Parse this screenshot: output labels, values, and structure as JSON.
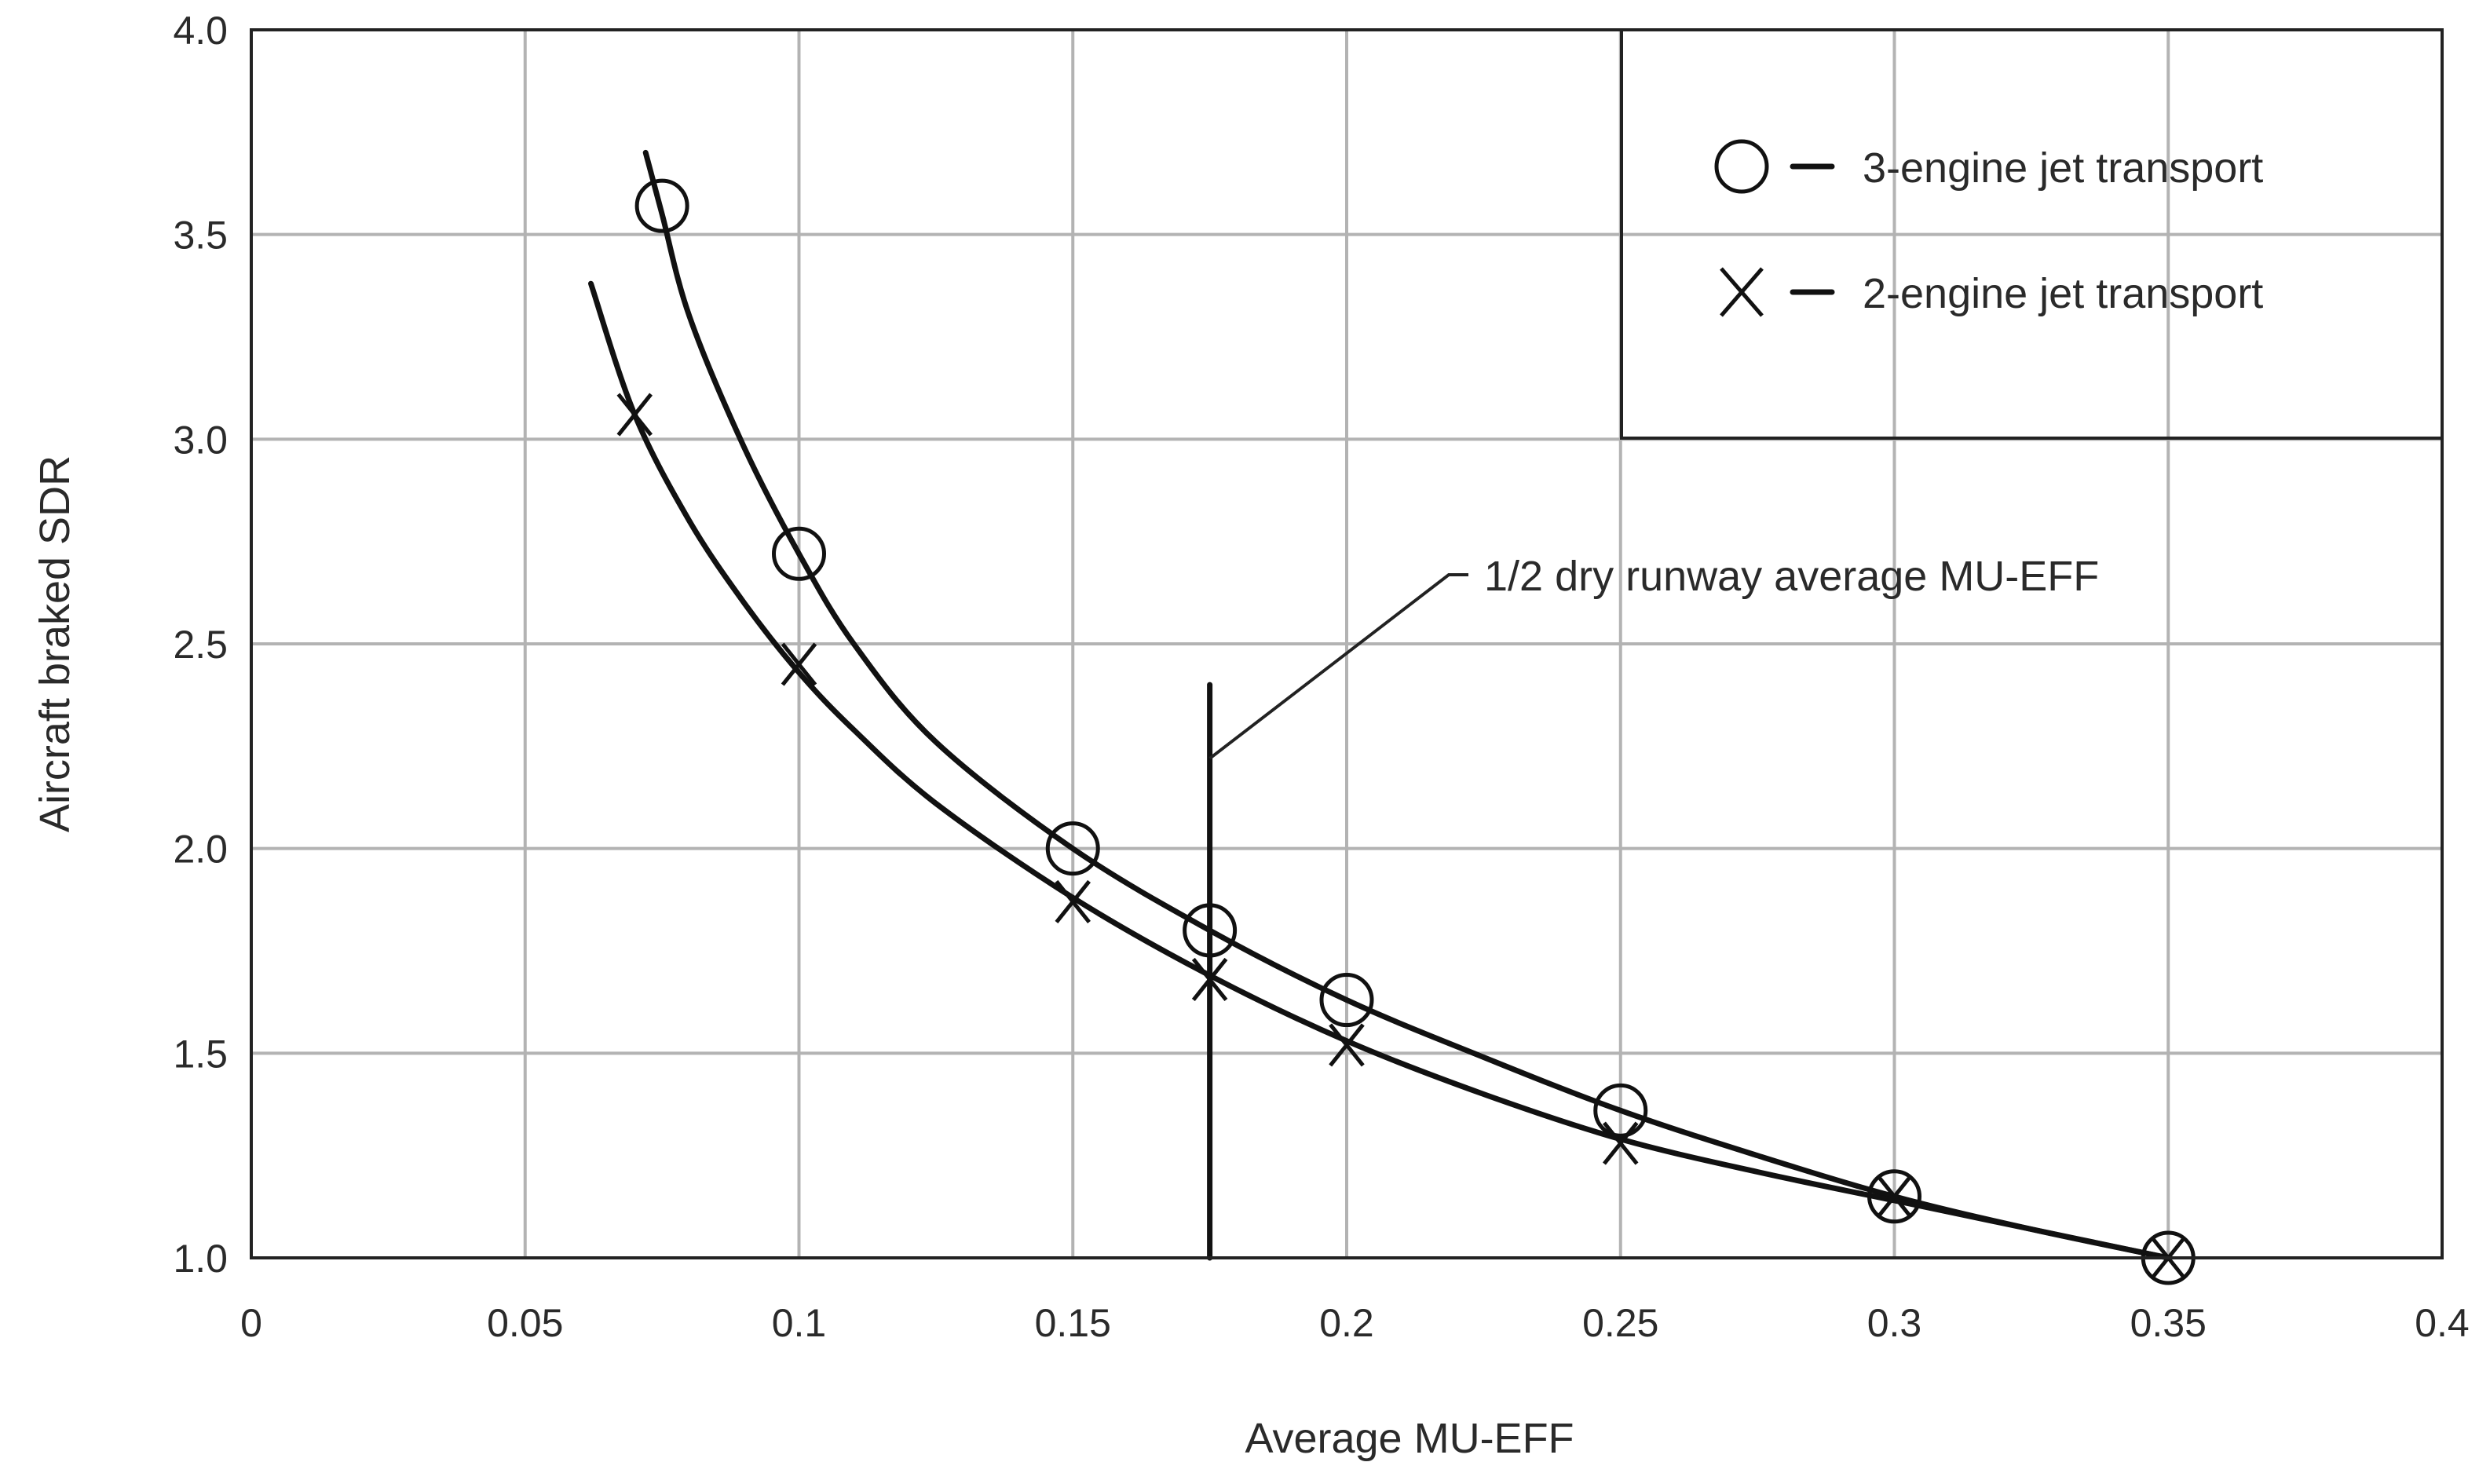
{
  "chart_data": {
    "type": "line",
    "title": "",
    "xlabel": "Average MU-EFF",
    "ylabel": "Aircraft braked SDR",
    "xlim": [
      0,
      0.4
    ],
    "ylim": [
      1.0,
      4.0
    ],
    "xticks": [
      0,
      0.05,
      0.1,
      0.15,
      0.2,
      0.25,
      0.3,
      0.35,
      0.4
    ],
    "xtick_labels": [
      "0",
      "0.05",
      "0.1",
      "0.15",
      "0.2",
      "0.25",
      "0.3",
      "0.35",
      "0.4"
    ],
    "yticks": [
      1.0,
      1.5,
      2.0,
      2.5,
      3.0,
      3.5,
      4.0
    ],
    "ytick_labels": [
      "1.0",
      "1.5",
      "2.0",
      "2.5",
      "3.0",
      "3.5",
      "4.0"
    ],
    "grid": true,
    "legend_position": "top-right",
    "series": [
      {
        "name": "3-engine jet transport",
        "legend_label": "3-engine jet transport",
        "marker": "circle",
        "points": [
          {
            "x": 0.075,
            "y": 3.57
          },
          {
            "x": 0.1,
            "y": 2.72
          },
          {
            "x": 0.15,
            "y": 2.0
          },
          {
            "x": 0.175,
            "y": 1.8
          },
          {
            "x": 0.2,
            "y": 1.63
          },
          {
            "x": 0.25,
            "y": 1.36
          },
          {
            "x": 0.3,
            "y": 1.15
          },
          {
            "x": 0.35,
            "y": 1.0
          }
        ],
        "curve": [
          {
            "x": 0.072,
            "y": 3.7
          },
          {
            "x": 0.075,
            "y": 3.55
          },
          {
            "x": 0.08,
            "y": 3.3
          },
          {
            "x": 0.09,
            "y": 2.98
          },
          {
            "x": 0.1,
            "y": 2.72
          },
          {
            "x": 0.11,
            "y": 2.5
          },
          {
            "x": 0.125,
            "y": 2.26
          },
          {
            "x": 0.15,
            "y": 2.0
          },
          {
            "x": 0.175,
            "y": 1.8
          },
          {
            "x": 0.2,
            "y": 1.63
          },
          {
            "x": 0.225,
            "y": 1.49
          },
          {
            "x": 0.25,
            "y": 1.36
          },
          {
            "x": 0.275,
            "y": 1.25
          },
          {
            "x": 0.3,
            "y": 1.15
          },
          {
            "x": 0.325,
            "y": 1.07
          },
          {
            "x": 0.35,
            "y": 1.0
          }
        ]
      },
      {
        "name": "2-engine jet transport",
        "legend_label": "2-engine jet transport",
        "marker": "x",
        "points": [
          {
            "x": 0.07,
            "y": 3.06
          },
          {
            "x": 0.1,
            "y": 2.45
          },
          {
            "x": 0.15,
            "y": 1.87
          },
          {
            "x": 0.175,
            "y": 1.68
          },
          {
            "x": 0.2,
            "y": 1.52
          },
          {
            "x": 0.25,
            "y": 1.28
          },
          {
            "x": 0.3,
            "y": 1.15
          },
          {
            "x": 0.35,
            "y": 1.0
          }
        ],
        "curve": [
          {
            "x": 0.062,
            "y": 3.38
          },
          {
            "x": 0.07,
            "y": 3.06
          },
          {
            "x": 0.08,
            "y": 2.8
          },
          {
            "x": 0.09,
            "y": 2.6
          },
          {
            "x": 0.1,
            "y": 2.43
          },
          {
            "x": 0.11,
            "y": 2.29
          },
          {
            "x": 0.125,
            "y": 2.11
          },
          {
            "x": 0.15,
            "y": 1.88
          },
          {
            "x": 0.175,
            "y": 1.69
          },
          {
            "x": 0.2,
            "y": 1.53
          },
          {
            "x": 0.225,
            "y": 1.4
          },
          {
            "x": 0.25,
            "y": 1.29
          },
          {
            "x": 0.275,
            "y": 1.21
          },
          {
            "x": 0.3,
            "y": 1.14
          },
          {
            "x": 0.325,
            "y": 1.07
          },
          {
            "x": 0.35,
            "y": 1.0
          }
        ]
      }
    ],
    "annotations": [
      {
        "name": "half-dry-runway",
        "text": "1/2 dry runway average MU-EFF",
        "x": 0.175,
        "y_from": 1.0,
        "y_to": 2.4
      }
    ]
  }
}
